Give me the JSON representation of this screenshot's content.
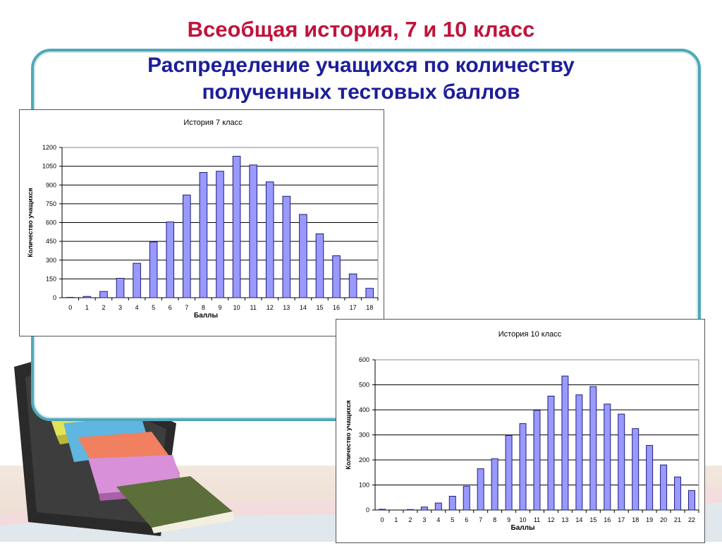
{
  "slide": {
    "title": "Всеобщая история, 7 и 10 класс",
    "subtitle_line1": "Распределение учащихся по количеству",
    "subtitle_line2": "полученных тестовых баллов"
  },
  "colors": {
    "title": "#c0143c",
    "subtitle": "#1d1e9a",
    "bar_fill": "#9999ff",
    "bar_stroke": "#1f1f7a",
    "panel_border": "#4fa8b8"
  },
  "chart_data": [
    {
      "type": "bar",
      "title": "История 7 класс",
      "xlabel": "Баллы",
      "ylabel": "Количество учащихся",
      "ylim": [
        0,
        1200
      ],
      "yticks": [
        0,
        150,
        300,
        450,
        600,
        750,
        900,
        1050,
        1200
      ],
      "grid": true,
      "categories": [
        "0",
        "1",
        "2",
        "3",
        "4",
        "5",
        "6",
        "7",
        "8",
        "9",
        "10",
        "11",
        "12",
        "13",
        "14",
        "15",
        "16",
        "17",
        "18"
      ],
      "values": [
        3,
        10,
        50,
        155,
        275,
        445,
        605,
        820,
        1000,
        1010,
        1130,
        1060,
        925,
        810,
        665,
        510,
        335,
        190,
        75
      ]
    },
    {
      "type": "bar",
      "title": "История 10 класс",
      "xlabel": "Баллы",
      "ylabel": "Количество учащихся",
      "ylim": [
        0,
        600
      ],
      "yticks": [
        0,
        100,
        200,
        300,
        400,
        500,
        600
      ],
      "grid": true,
      "categories": [
        "0",
        "1",
        "2",
        "3",
        "4",
        "5",
        "6",
        "7",
        "8",
        "9",
        "10",
        "11",
        "12",
        "13",
        "14",
        "15",
        "16",
        "17",
        "18",
        "19",
        "20",
        "21",
        "22"
      ],
      "values": [
        3,
        0,
        2,
        12,
        28,
        55,
        95,
        165,
        205,
        298,
        345,
        398,
        455,
        535,
        460,
        493,
        423,
        383,
        325,
        258,
        180,
        132,
        78
      ]
    }
  ]
}
